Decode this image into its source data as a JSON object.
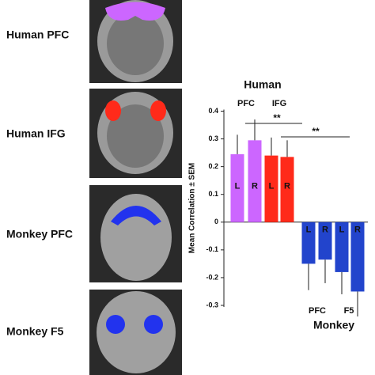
{
  "panels": [
    {
      "label": "Human PFC"
    },
    {
      "label": "Human IFG"
    },
    {
      "label": "Monkey PFC"
    },
    {
      "label": "Monkey F5"
    }
  ],
  "chart_data": {
    "type": "bar",
    "y_label": "Mean Correlation ± SEM",
    "categories": [
      "L",
      "R",
      "L",
      "R",
      "L",
      "R",
      "L",
      "R"
    ],
    "values": [
      0.245,
      0.295,
      0.24,
      0.235,
      -0.15,
      -0.135,
      -0.18,
      -0.25
    ],
    "errors": [
      0.07,
      0.075,
      0.065,
      0.06,
      0.095,
      0.085,
      0.08,
      0.09
    ],
    "colors": [
      "#cc66ff",
      "#cc66ff",
      "#ff2a1a",
      "#ff2a1a",
      "#2244cc",
      "#2244cc",
      "#2244cc",
      "#2244cc"
    ],
    "groups": [
      {
        "label": "Human",
        "subgroups": [
          "PFC",
          "IFG"
        ]
      },
      {
        "label": "Monkey",
        "subgroups": [
          "PFC",
          "F5"
        ]
      }
    ],
    "annotations": [
      "**",
      "**"
    ],
    "ylim": [
      -0.3,
      0.4
    ],
    "yticks": [
      0.4,
      0.3,
      0.2,
      0.1,
      0,
      -0.1,
      -0.2,
      -0.3
    ]
  }
}
